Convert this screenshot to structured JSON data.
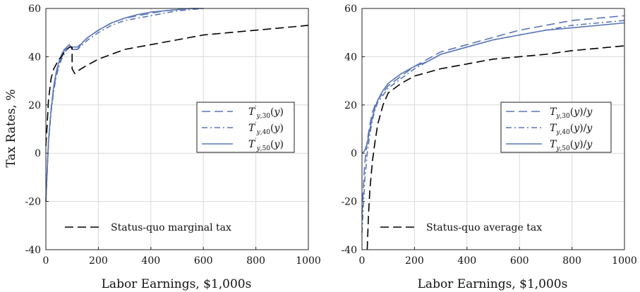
{
  "chart_data": [
    {
      "type": "line",
      "xlabel": "Labor Earnings, $1,000s",
      "ylabel": "Tax Rates, %",
      "xlim": [
        0,
        1000
      ],
      "ylim": [
        -40,
        60
      ],
      "xticks": [
        "0",
        "200",
        "400",
        "600",
        "800",
        "1000"
      ],
      "yticks": [
        "-40",
        "-20",
        "0",
        "20",
        "40",
        "60"
      ],
      "grid": true,
      "legend_position": "right-middle",
      "series": [
        {
          "name": "T'_{y,30}(y)",
          "style": "dashed",
          "color": "#5b77b7",
          "x": [
            0,
            10,
            20,
            30,
            40,
            50,
            60,
            70,
            80,
            90,
            100,
            120,
            140,
            160,
            200,
            250,
            300,
            350,
            400,
            450,
            500,
            550,
            600
          ],
          "y": [
            -20,
            5,
            18,
            27,
            33,
            37,
            40,
            42,
            44,
            45,
            44,
            44,
            46,
            48,
            51,
            54,
            56,
            57,
            58,
            59,
            59.5,
            60,
            60
          ]
        },
        {
          "name": "T'_{y,40}(y)",
          "style": "dashdot",
          "color": "#5b77b7",
          "x": [
            0,
            10,
            20,
            30,
            40,
            50,
            60,
            70,
            80,
            90,
            100,
            120,
            140,
            160,
            200,
            250,
            300,
            350,
            400,
            450,
            500,
            550,
            600
          ],
          "y": [
            -20,
            4,
            17,
            26,
            32,
            36,
            39,
            41,
            43,
            44,
            43,
            43,
            45,
            47,
            50,
            53,
            55,
            56,
            57,
            58,
            59,
            59.5,
            60
          ]
        },
        {
          "name": "T'_{y,50}(y)",
          "style": "solid",
          "color": "#5b77b7",
          "x": [
            0,
            10,
            20,
            30,
            40,
            50,
            60,
            70,
            80,
            90,
            100,
            120,
            140,
            160,
            200,
            250,
            300,
            350,
            400,
            450,
            500,
            550,
            600
          ],
          "y": [
            -20,
            5,
            18,
            28,
            34,
            38,
            41,
            43,
            44,
            45,
            43,
            43,
            46,
            48,
            51,
            54,
            56,
            57.5,
            58.5,
            59,
            59.5,
            60,
            60
          ]
        },
        {
          "name": "Status-quo marginal tax",
          "style": "dashed",
          "color": "#000000",
          "x": [
            0,
            5,
            10,
            20,
            30,
            40,
            50,
            60,
            70,
            80,
            90,
            100,
            100,
            110,
            120,
            150,
            200,
            250,
            300,
            400,
            500,
            600,
            700,
            800,
            900,
            1000
          ],
          "y": [
            3,
            12,
            22,
            31,
            35,
            37,
            39,
            40,
            42,
            43,
            44,
            44,
            35,
            33,
            34,
            36,
            39,
            41,
            43,
            45,
            47,
            49,
            50,
            51,
            52,
            53
          ]
        }
      ]
    },
    {
      "type": "line",
      "xlabel": "Labor Earnings, $1,000s",
      "ylabel": "",
      "xlim": [
        0,
        1000
      ],
      "ylim": [
        -40,
        60
      ],
      "xticks": [
        "0",
        "200",
        "400",
        "600",
        "800",
        "1000"
      ],
      "yticks": [
        "-40",
        "-20",
        "0",
        "20",
        "40",
        "60"
      ],
      "grid": true,
      "legend_position": "right-middle",
      "series": [
        {
          "name": "T_{y,30}(y)/y",
          "style": "dashed",
          "color": "#5b77b7",
          "x": [
            0,
            10,
            20,
            30,
            40,
            50,
            60,
            80,
            100,
            150,
            200,
            250,
            300,
            400,
            500,
            600,
            700,
            800,
            900,
            1000
          ],
          "y": [
            -25,
            -5,
            5,
            12,
            17,
            20,
            22,
            25,
            28,
            32,
            36,
            39,
            42,
            45,
            48,
            51,
            53,
            55,
            56,
            57
          ]
        },
        {
          "name": "T_{y,40}(y)/y",
          "style": "dashdot",
          "color": "#5b77b7",
          "x": [
            0,
            10,
            20,
            30,
            40,
            50,
            60,
            80,
            100,
            150,
            200,
            250,
            300,
            400,
            500,
            600,
            700,
            800,
            900,
            1000
          ],
          "y": [
            -33,
            -12,
            0,
            8,
            14,
            18,
            21,
            24,
            27,
            31,
            35,
            38,
            41,
            44,
            47,
            49,
            51,
            53,
            54,
            55
          ]
        },
        {
          "name": "T_{y,50}(y)/y",
          "style": "solid",
          "color": "#5b77b7",
          "x": [
            0,
            10,
            20,
            30,
            40,
            50,
            60,
            80,
            100,
            150,
            200,
            250,
            300,
            400,
            500,
            600,
            700,
            800,
            900,
            1000
          ],
          "y": [
            0,
            1,
            4,
            10,
            15,
            19,
            22,
            26,
            29,
            33,
            36,
            38,
            41,
            44,
            47,
            49,
            51,
            52,
            53,
            54
          ]
        },
        {
          "name": "Status-quo average tax",
          "style": "dashed",
          "color": "#000000",
          "x": [
            20,
            25,
            30,
            40,
            50,
            60,
            80,
            100,
            150,
            200,
            300,
            400,
            500,
            600,
            700,
            800,
            900,
            1000
          ],
          "y": [
            -40,
            -25,
            -15,
            -3,
            5,
            12,
            20,
            25,
            29,
            32,
            35,
            37,
            39,
            40,
            41,
            42.5,
            43.5,
            44.5
          ]
        }
      ]
    }
  ]
}
